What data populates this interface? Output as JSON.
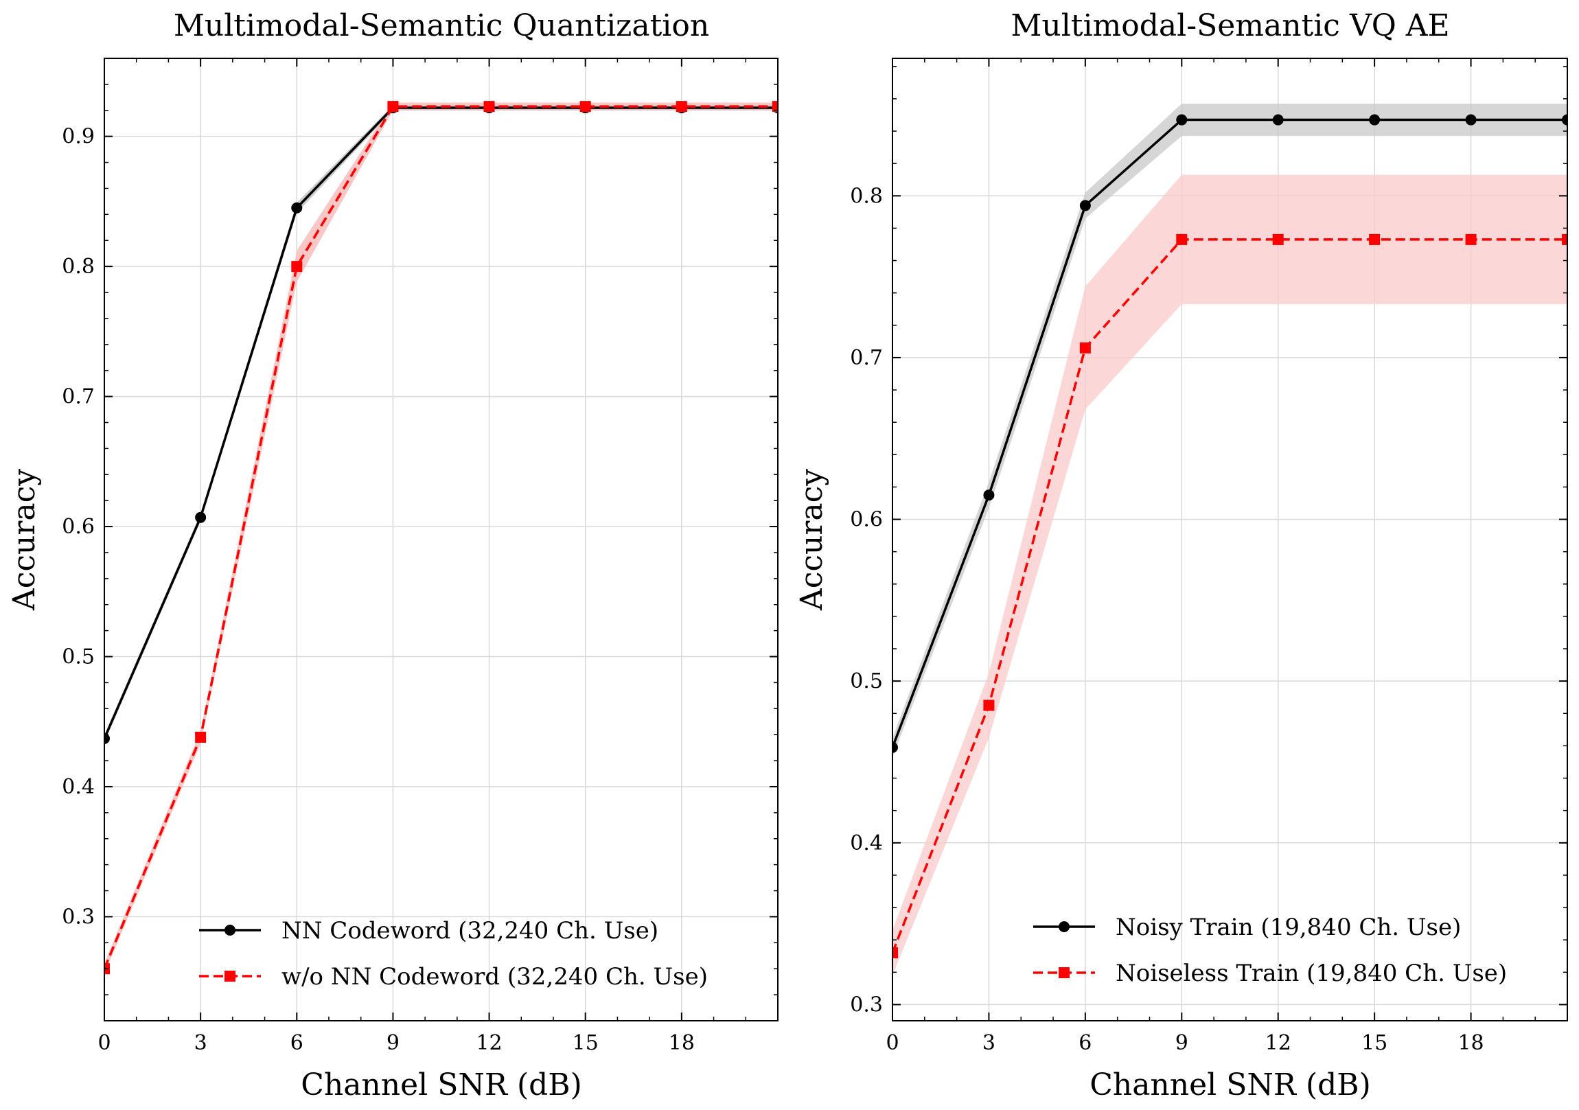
{
  "chart_data": [
    {
      "type": "line",
      "title": "Multimodal-Semantic Quantization",
      "xlabel": "Channel SNR (dB)",
      "ylabel": "Accuracy",
      "xlim": [
        0,
        21
      ],
      "ylim": [
        0.22,
        0.96
      ],
      "x_ticks": [
        0,
        3,
        6,
        9,
        12,
        15,
        18
      ],
      "y_ticks": [
        0.3,
        0.4,
        0.5,
        0.6,
        0.7,
        0.8,
        0.9
      ],
      "y_tick_labels": [
        "0.3",
        "0.4",
        "0.5",
        "0.6",
        "0.7",
        "0.8",
        "0.9"
      ],
      "grid": true,
      "legend_position": "bottom-right",
      "x": [
        0,
        3,
        6,
        9,
        12,
        15,
        18,
        21
      ],
      "series": [
        {
          "name": "NN Codeword (32,240 Ch. Use)",
          "color": "#000000",
          "marker": "circle",
          "linestyle": "solid",
          "values": [
            0.437,
            0.607,
            0.845,
            0.922,
            0.922,
            0.922,
            0.922,
            0.922
          ],
          "band": [
            0.003,
            0.003,
            0.004,
            0.002,
            0.002,
            0.002,
            0.002,
            0.002
          ],
          "band_color": "#bbbbbb"
        },
        {
          "name": "w/o NN Codeword (32,240 Ch. Use)",
          "color": "#ff0000",
          "marker": "square",
          "linestyle": "dashed",
          "values": [
            0.26,
            0.438,
            0.8,
            0.923,
            0.923,
            0.923,
            0.923,
            0.923
          ],
          "band": [
            0.004,
            0.005,
            0.012,
            0.003,
            0.003,
            0.003,
            0.003,
            0.003
          ],
          "band_color": "#f8b4b4"
        }
      ]
    },
    {
      "type": "line",
      "title": "Multimodal-Semantic VQ AE",
      "xlabel": "Channel SNR (dB)",
      "ylabel": "Accuracy",
      "xlim": [
        0,
        21
      ],
      "ylim": [
        0.29,
        0.885
      ],
      "x_ticks": [
        0,
        3,
        6,
        9,
        12,
        15,
        18
      ],
      "y_ticks": [
        0.3,
        0.4,
        0.5,
        0.6,
        0.7,
        0.8
      ],
      "y_tick_labels": [
        "0.3",
        "0.4",
        "0.5",
        "0.6",
        "0.7",
        "0.8"
      ],
      "grid": true,
      "legend_position": "bottom-right",
      "x": [
        0,
        3,
        6,
        9,
        12,
        15,
        18,
        21
      ],
      "series": [
        {
          "name": "Noisy Train (19,840 Ch. Use)",
          "color": "#000000",
          "marker": "circle",
          "linestyle": "solid",
          "values": [
            0.459,
            0.615,
            0.794,
            0.847,
            0.847,
            0.847,
            0.847,
            0.847
          ],
          "band": [
            0.006,
            0.008,
            0.008,
            0.01,
            0.01,
            0.01,
            0.01,
            0.01
          ],
          "band_color": "#c8c8c8"
        },
        {
          "name": "Noiseless Train (19,840 Ch. Use)",
          "color": "#ff0000",
          "marker": "square",
          "linestyle": "dashed",
          "values": [
            0.332,
            0.485,
            0.706,
            0.773,
            0.773,
            0.773,
            0.773,
            0.773
          ],
          "band": [
            0.014,
            0.02,
            0.038,
            0.04,
            0.04,
            0.04,
            0.04,
            0.04
          ],
          "band_color": "#fbc9c9"
        }
      ]
    }
  ]
}
